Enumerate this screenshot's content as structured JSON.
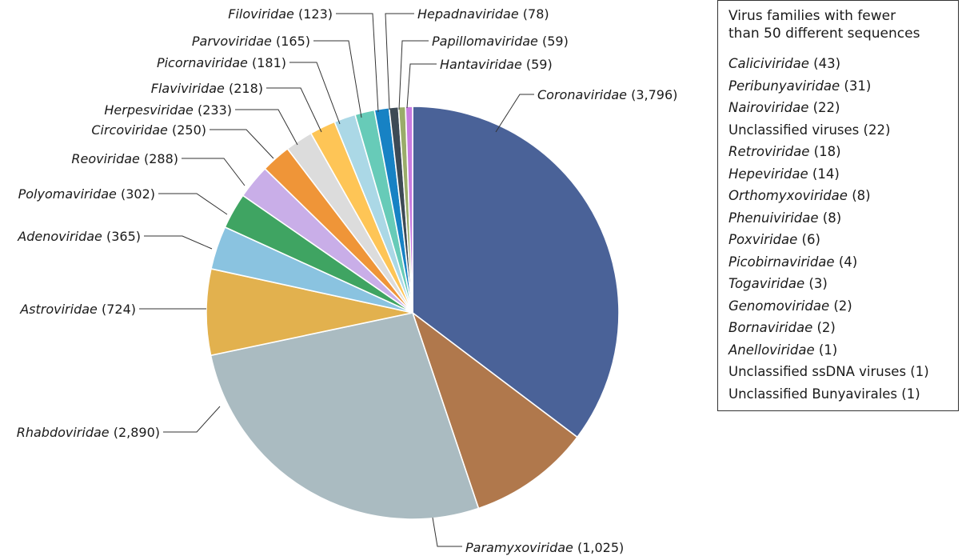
{
  "chart_data": {
    "type": "pie",
    "title": "",
    "order": "clockwise from 12 o'clock",
    "slices": [
      {
        "label": "Coronaviridae",
        "italic": true,
        "value": 3796,
        "display": "3,796",
        "color": "#4a6298"
      },
      {
        "label": "Paramyxoviridae",
        "italic": true,
        "value": 1025,
        "display": "1,025",
        "color": "#b0784c"
      },
      {
        "label": "Rhabdoviridae",
        "italic": true,
        "value": 2890,
        "display": "2,890",
        "color": "#aabbc1"
      },
      {
        "label": "Astroviridae",
        "italic": true,
        "value": 724,
        "display": "724",
        "color": "#e2b14e"
      },
      {
        "label": "Adenoviridae",
        "italic": true,
        "value": 365,
        "display": "365",
        "color": "#8ac3e0"
      },
      {
        "label": "Polyomaviridae",
        "italic": true,
        "value": 302,
        "display": "302",
        "color": "#3fa462"
      },
      {
        "label": "Reoviridae",
        "italic": true,
        "value": 288,
        "display": "288",
        "color": "#c9aee8"
      },
      {
        "label": "Circoviridae",
        "italic": true,
        "value": 250,
        "display": "250",
        "color": "#ef9538"
      },
      {
        "label": "Herpesviridae",
        "italic": true,
        "value": 233,
        "display": "233",
        "color": "#dcdcdc"
      },
      {
        "label": "Flaviviridae",
        "italic": true,
        "value": 218,
        "display": "218",
        "color": "#fec556"
      },
      {
        "label": "Picornaviridae",
        "italic": true,
        "value": 181,
        "display": "181",
        "color": "#abd8e6"
      },
      {
        "label": "Parvoviridae",
        "italic": true,
        "value": 165,
        "display": "165",
        "color": "#67cbb8"
      },
      {
        "label": "Filoviridae",
        "italic": true,
        "value": 123,
        "display": "123",
        "color": "#1782c4"
      },
      {
        "label": "Hepadnaviridae",
        "italic": true,
        "value": 78,
        "display": "78",
        "color": "#3d4a55"
      },
      {
        "label": "Papillomaviridae",
        "italic": true,
        "value": 59,
        "display": "59",
        "color": "#9aac6a"
      },
      {
        "label": "Hantaviridae",
        "italic": true,
        "value": 59,
        "display": "59",
        "color": "#c77be0"
      }
    ]
  },
  "legend": {
    "title": "Virus families with fewer than 50 different sequences",
    "items": [
      {
        "name": "Caliciviridae",
        "italic": true,
        "count": "(43)"
      },
      {
        "name": "Peribunyaviridae",
        "italic": true,
        "count": "(31)"
      },
      {
        "name": "Nairoviridae",
        "italic": true,
        "count": "(22)"
      },
      {
        "name": "Unclassified viruses",
        "italic": false,
        "count": "(22)"
      },
      {
        "name": "Retroviridae",
        "italic": true,
        "count": "(18)"
      },
      {
        "name": "Hepeviridae",
        "italic": true,
        "count": "(14)"
      },
      {
        "name": "Orthomyxoviridae",
        "italic": true,
        "count": "(8)"
      },
      {
        "name": "Phenuiviridae",
        "italic": true,
        "count": "(8)"
      },
      {
        "name": "Poxviridae",
        "italic": true,
        "count": "(6)"
      },
      {
        "name": "Picobirnaviridae",
        "italic": true,
        "count": "(4)"
      },
      {
        "name": "Togaviridae",
        "italic": true,
        "count": "(3)"
      },
      {
        "name": "Genomoviridae",
        "italic": true,
        "count": "(2)"
      },
      {
        "name": "Bornaviridae",
        "italic": true,
        "count": "(2)"
      },
      {
        "name": "Anelloviridae",
        "italic": true,
        "count": "(1)"
      },
      {
        "name": "Unclassified ssDNA viruses",
        "italic": false,
        "count": "(1)"
      },
      {
        "name": "Unclassified Bunyavirales",
        "italic": false,
        "count": "(1)"
      }
    ]
  }
}
